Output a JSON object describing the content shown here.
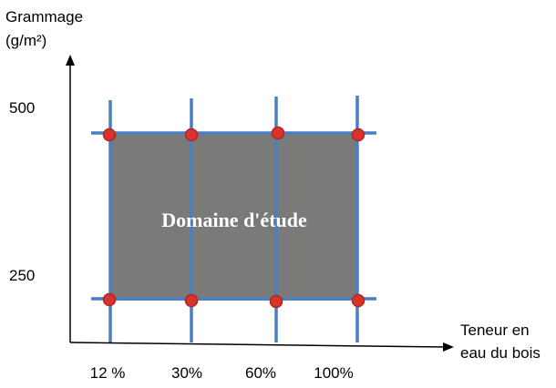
{
  "y_axis": {
    "label_line1": "Grammage",
    "label_line2": "(g/m²)",
    "ticks": [
      "500",
      "250"
    ]
  },
  "x_axis": {
    "label_line1": "Teneur en",
    "label_line2": "eau du bois",
    "ticks": [
      "12 %",
      "30%",
      "60%",
      "100%"
    ]
  },
  "region": {
    "label": "Domaine d'étude",
    "fill_color": "#7a7a78"
  },
  "colors": {
    "grid_line": "#4a7fc1",
    "point_fill": "#d9332e",
    "point_stroke": "#b22520",
    "axis": "#000000"
  }
}
